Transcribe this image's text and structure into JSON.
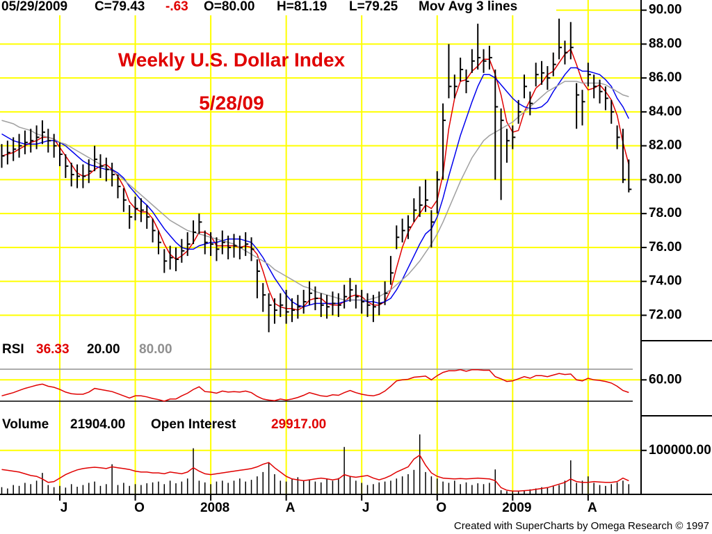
{
  "chart_data": [
    {
      "type": "ohlc",
      "header": {
        "date": "05/29/2009",
        "close": "C=79.43",
        "change": "-.63",
        "open": "O=80.00",
        "high": "H=81.19",
        "low": "L=79.25",
        "note": "Mov Avg 3 lines"
      },
      "title": "Weekly U.S. Dollar Index",
      "subtitle": "5/28/09",
      "categories": [
        null,
        null,
        null,
        null,
        null,
        null,
        null,
        null,
        null,
        null,
        "J",
        null,
        null,
        null,
        null,
        null,
        null,
        null,
        null,
        null,
        null,
        null,
        null,
        "O",
        null,
        null,
        null,
        null,
        null,
        null,
        null,
        null,
        null,
        null,
        null,
        null,
        "2008",
        null,
        null,
        null,
        null,
        null,
        null,
        null,
        null,
        null,
        null,
        null,
        null,
        "A",
        null,
        null,
        null,
        null,
        null,
        null,
        null,
        null,
        null,
        null,
        null,
        null,
        "J",
        null,
        null,
        null,
        null,
        null,
        null,
        null,
        null,
        null,
        null,
        null,
        null,
        "O",
        null,
        null,
        null,
        null,
        null,
        null,
        null,
        null,
        null,
        null,
        null,
        null,
        "2009",
        null,
        null,
        null,
        null,
        null,
        null,
        null,
        null,
        null,
        null,
        null,
        null,
        "A",
        null,
        null,
        null,
        null,
        null,
        null,
        null
      ],
      "high": [
        82.1,
        82.3,
        82.5,
        82.7,
        82.9,
        83.0,
        83.2,
        83.5,
        83.0,
        82.7,
        82.2,
        81.5,
        81.0,
        80.9,
        80.9,
        81.2,
        82.0,
        81.5,
        81.3,
        81.0,
        80.3,
        79.5,
        78.5,
        79.0,
        78.9,
        78.5,
        77.7,
        77.0,
        75.9,
        76.1,
        76.0,
        76.5,
        76.9,
        77.6,
        78.0,
        77.0,
        76.9,
        76.6,
        77.0,
        76.7,
        76.8,
        76.7,
        76.9,
        76.6,
        75.3,
        73.9,
        73.3,
        73.0,
        73.3,
        73.5,
        73.0,
        73.2,
        73.5,
        74.0,
        73.7,
        73.3,
        73.2,
        73.4,
        73.3,
        73.8,
        74.2,
        73.8,
        73.5,
        73.3,
        73.2,
        73.4,
        74.0,
        75.5,
        77.3,
        77.7,
        77.9,
        78.9,
        79.6,
        80.0,
        78.2,
        80.5,
        84.5,
        88.0,
        86.2,
        87.2,
        86.5,
        87.7,
        89.2,
        87.7,
        87.9,
        86.5,
        84.2,
        83.0,
        83.2,
        84.7,
        86.2,
        85.2,
        86.9,
        87.0,
        86.7,
        87.5,
        89.5,
        88.2,
        89.3,
        85.7,
        85.3,
        86.9,
        86.2,
        85.9,
        85.5,
        84.7,
        83.2,
        83.0,
        81.19
      ],
      "low": [
        80.7,
        80.9,
        81.1,
        81.3,
        81.5,
        81.6,
        81.8,
        82.1,
        81.6,
        81.3,
        80.8,
        80.1,
        79.6,
        79.5,
        79.5,
        79.8,
        80.5,
        80.1,
        79.9,
        79.6,
        78.9,
        78.1,
        77.1,
        77.6,
        77.5,
        77.1,
        76.3,
        75.6,
        74.5,
        74.7,
        74.6,
        75.1,
        75.5,
        76.2,
        76.8,
        75.6,
        75.5,
        75.2,
        75.6,
        75.3,
        75.4,
        75.3,
        75.5,
        75.2,
        73.0,
        72.2,
        71.0,
        71.5,
        71.9,
        71.5,
        71.6,
        71.8,
        72.1,
        72.6,
        72.3,
        71.9,
        71.8,
        72.0,
        71.9,
        72.4,
        72.8,
        72.4,
        72.1,
        71.9,
        71.6,
        72.0,
        72.6,
        73.8,
        75.9,
        76.3,
        76.5,
        77.5,
        77.8,
        78.1,
        76.0,
        78.0,
        80.0,
        84.8,
        84.8,
        85.8,
        85.1,
        86.3,
        86.5,
        86.3,
        86.5,
        80.0,
        78.8,
        81.0,
        81.8,
        83.3,
        84.8,
        83.8,
        85.5,
        85.6,
        85.3,
        86.1,
        87.1,
        86.8,
        87.1,
        83.0,
        83.2,
        85.5,
        84.8,
        84.5,
        84.1,
        83.3,
        81.8,
        79.8,
        79.25
      ],
      "close": [
        81.4,
        81.6,
        81.8,
        82.0,
        82.2,
        82.3,
        82.5,
        82.8,
        82.3,
        82.0,
        81.5,
        80.8,
        80.3,
        80.2,
        80.2,
        80.5,
        81.2,
        80.8,
        80.6,
        80.3,
        79.6,
        78.8,
        77.8,
        78.3,
        78.2,
        77.8,
        77.0,
        76.3,
        75.2,
        75.4,
        75.3,
        75.8,
        76.2,
        76.9,
        77.5,
        76.3,
        76.2,
        75.9,
        76.3,
        76.0,
        76.1,
        76.0,
        76.2,
        75.9,
        74.6,
        73.2,
        72.6,
        72.3,
        72.6,
        72.2,
        72.3,
        72.5,
        72.8,
        73.3,
        73.0,
        72.6,
        72.5,
        72.7,
        72.6,
        73.1,
        73.5,
        73.1,
        72.8,
        72.6,
        72.5,
        72.7,
        73.3,
        74.5,
        76.6,
        77.0,
        77.2,
        78.2,
        78.5,
        78.8,
        77.5,
        80.0,
        83.5,
        85.5,
        85.5,
        86.5,
        85.8,
        87.0,
        87.2,
        87.0,
        87.2,
        84.3,
        83.5,
        82.3,
        82.5,
        84.0,
        85.5,
        84.5,
        86.2,
        86.3,
        86.0,
        86.8,
        87.8,
        87.5,
        87.8,
        85.0,
        84.6,
        86.2,
        85.5,
        85.2,
        84.8,
        84.0,
        82.5,
        80.0,
        79.43
      ],
      "bar_color": "#000000",
      "moving_averages": [
        {
          "color": "#e00000",
          "values": [
            81.4,
            81.5,
            81.6,
            81.8,
            82.0,
            82.2,
            82.3,
            82.5,
            82.5,
            82.4,
            81.9,
            81.4,
            80.9,
            80.4,
            80.2,
            80.3,
            80.6,
            80.8,
            80.9,
            80.6,
            80.2,
            79.6,
            78.7,
            78.3,
            78.1,
            78.1,
            77.7,
            77.0,
            76.2,
            75.6,
            75.3,
            75.5,
            75.8,
            76.3,
            76.9,
            76.9,
            76.7,
            76.1,
            76.1,
            76.1,
            76.1,
            76.0,
            76.1,
            76.0,
            75.6,
            74.6,
            73.5,
            72.7,
            72.5,
            72.4,
            72.4,
            72.3,
            72.5,
            72.9,
            73.0,
            73.0,
            72.7,
            72.6,
            72.6,
            72.8,
            73.1,
            73.2,
            73.1,
            72.8,
            72.6,
            72.6,
            72.8,
            73.5,
            74.8,
            76.0,
            76.9,
            77.5,
            78.0,
            78.5,
            78.3,
            78.8,
            80.3,
            83.0,
            84.8,
            85.8,
            85.9,
            86.4,
            86.7,
            87.1,
            87.1,
            86.2,
            85.0,
            83.4,
            82.8,
            82.9,
            84.0,
            84.7,
            85.4,
            85.7,
            86.2,
            86.4,
            86.9,
            87.4,
            87.7,
            86.8,
            85.8,
            85.3,
            85.4,
            85.6,
            85.2,
            84.7,
            83.8,
            82.2,
            80.9
          ]
        },
        {
          "color": "#0000ee",
          "values": [
            82.7,
            82.5,
            82.3,
            82.2,
            82.1,
            82.1,
            82.1,
            82.2,
            82.3,
            82.3,
            82.2,
            82.0,
            81.7,
            81.4,
            81.1,
            80.9,
            80.8,
            80.7,
            80.6,
            80.6,
            80.4,
            80.1,
            79.6,
            79.2,
            78.8,
            78.5,
            78.1,
            77.6,
            77.1,
            76.7,
            76.3,
            76.0,
            75.9,
            75.9,
            76.1,
            76.2,
            76.3,
            76.3,
            76.4,
            76.5,
            76.5,
            76.5,
            76.4,
            76.3,
            75.9,
            75.4,
            74.8,
            74.2,
            73.7,
            73.2,
            72.8,
            72.6,
            72.5,
            72.6,
            72.7,
            72.7,
            72.7,
            72.7,
            72.7,
            72.8,
            72.9,
            72.9,
            72.9,
            72.8,
            72.8,
            72.7,
            72.8,
            73.0,
            73.5,
            74.1,
            74.8,
            75.5,
            76.2,
            76.8,
            77.1,
            77.8,
            78.9,
            80.2,
            81.4,
            82.6,
            83.6,
            84.6,
            85.5,
            86.2,
            86.2,
            86.0,
            85.6,
            85.2,
            84.8,
            84.5,
            84.3,
            84.2,
            84.2,
            84.3,
            84.6,
            85.2,
            85.7,
            86.2,
            86.6,
            86.6,
            86.4,
            86.4,
            86.3,
            86.2,
            85.9,
            85.5,
            84.8,
            84.3,
            83.6
          ]
        },
        {
          "color": "#a0a0a0",
          "values": [
            83.5,
            83.4,
            83.3,
            83.1,
            83.0,
            82.9,
            82.7,
            82.6,
            82.5,
            82.4,
            82.2,
            82.1,
            81.9,
            81.7,
            81.5,
            81.3,
            81.1,
            80.9,
            80.7,
            80.5,
            80.3,
            80.0,
            79.7,
            79.4,
            79.1,
            78.8,
            78.5,
            78.2,
            77.9,
            77.6,
            77.4,
            77.2,
            77.0,
            76.9,
            76.8,
            76.7,
            76.6,
            76.5,
            76.4,
            76.3,
            76.2,
            76.0,
            75.8,
            75.6,
            75.4,
            75.2,
            75.0,
            74.7,
            74.5,
            74.3,
            74.1,
            73.9,
            73.7,
            73.6,
            73.4,
            73.3,
            73.2,
            73.1,
            73.0,
            72.9,
            72.9,
            72.9,
            72.9,
            72.9,
            73.0,
            73.1,
            73.3,
            73.5,
            73.8,
            74.1,
            74.4,
            74.8,
            75.2,
            75.7,
            76.2,
            76.8,
            77.5,
            78.3,
            79.1,
            79.9,
            80.6,
            81.3,
            81.8,
            82.3,
            82.6,
            82.8,
            83.0,
            83.2,
            83.4,
            83.7,
            84.0,
            84.3,
            84.6,
            84.9,
            85.2,
            85.4,
            85.6,
            85.8,
            85.8,
            85.8,
            85.7,
            85.7,
            85.7,
            85.7,
            85.6,
            85.4,
            85.2,
            85.0,
            84.9
          ]
        }
      ],
      "ylim": [
        70.5,
        90.6
      ],
      "yticks": [
        {
          "value": 72,
          "label": "72.00"
        },
        {
          "value": 74,
          "label": "74.00"
        },
        {
          "value": 76,
          "label": "76.00"
        },
        {
          "value": 78,
          "label": "78.00"
        },
        {
          "value": 80,
          "label": "80.00"
        },
        {
          "value": 82,
          "label": "82.00"
        },
        {
          "value": 84,
          "label": "84.00"
        },
        {
          "value": 86,
          "label": "86.00"
        },
        {
          "value": 88,
          "label": "88.00"
        },
        {
          "value": 90,
          "label": "90.00"
        }
      ],
      "grid": true,
      "grid_color": "#ffff00"
    },
    {
      "type": "line",
      "label": "RSI",
      "value_label": "36.33",
      "color": "#e00000",
      "values": [
        30,
        33,
        36,
        40,
        44,
        47,
        50,
        52,
        48,
        46,
        42,
        37,
        34,
        33,
        33,
        37,
        44,
        42,
        40,
        38,
        34,
        30,
        26,
        30,
        30,
        28,
        25,
        23,
        20,
        24,
        24,
        30,
        35,
        42,
        47,
        38,
        37,
        35,
        39,
        37,
        38,
        37,
        39,
        36,
        29,
        24,
        22,
        21,
        24,
        22,
        24,
        27,
        31,
        36,
        33,
        30,
        29,
        32,
        31,
        36,
        40,
        36,
        33,
        31,
        30,
        33,
        39,
        48,
        58,
        60,
        61,
        65,
        66,
        67,
        60,
        68,
        74,
        77,
        77,
        79,
        76,
        79,
        79,
        78,
        78,
        66,
        62,
        57,
        58,
        62,
        66,
        63,
        68,
        68,
        66,
        69,
        72,
        70,
        71,
        60,
        58,
        63,
        60,
        59,
        57,
        54,
        48,
        40,
        36.33
      ],
      "levels": [
        {
          "value": 20,
          "label": "20.00",
          "color": "#000000"
        },
        {
          "value": 80,
          "label": "80.00",
          "color": "#909090"
        }
      ],
      "ylim": [
        -7.4,
        133.4
      ],
      "yticks": [
        {
          "value": 60,
          "label": "60.00"
        }
      ],
      "grid": true
    },
    {
      "type": "volume",
      "volume": {
        "label": "Volume",
        "value_label": "21904.00",
        "color": "#000000",
        "values": [
          15000,
          12000,
          20000,
          18000,
          25000,
          22000,
          30000,
          48000,
          20000,
          15000,
          18000,
          14000,
          22000,
          16000,
          20000,
          25000,
          28000,
          18000,
          22000,
          68000,
          20000,
          25000,
          18000,
          22000,
          20000,
          24000,
          26000,
          28000,
          22000,
          30000,
          24000,
          28000,
          35000,
          105000,
          30000,
          26000,
          22000,
          28000,
          30000,
          25000,
          30000,
          35000,
          28000,
          32000,
          40000,
          50000,
          72000,
          45000,
          30000,
          28000,
          35000,
          38000,
          30000,
          32000,
          28000,
          26000,
          34000,
          30000,
          36000,
          108000,
          40000,
          30000,
          25000,
          20000,
          22000,
          26000,
          28000,
          30000,
          35000,
          40000,
          45000,
          55000,
          137000,
          50000,
          40000,
          35000,
          28000,
          25000,
          30000,
          22000,
          26000,
          20000,
          24000,
          22000,
          25000,
          56000,
          8000,
          6000,
          5000,
          7000,
          8000,
          10000,
          12000,
          15000,
          14000,
          18000,
          20000,
          30000,
          77000,
          25000,
          30000,
          40000,
          25000,
          20000,
          18000,
          22000,
          26000,
          30000,
          21904
        ]
      },
      "open_interest": {
        "label": "Open Interest",
        "value_label": "29917.00",
        "color": "#e00000",
        "values": [
          56000,
          54000,
          52000,
          50000,
          46000,
          42000,
          40000,
          34000,
          26000,
          28000,
          36000,
          44000,
          50000,
          55000,
          58000,
          60000,
          61000,
          60000,
          58000,
          62000,
          60000,
          58000,
          56000,
          52000,
          50000,
          50000,
          48000,
          48000,
          46000,
          50000,
          48000,
          46000,
          50000,
          60000,
          52000,
          46000,
          44000,
          46000,
          48000,
          50000,
          52000,
          54000,
          56000,
          58000,
          62000,
          68000,
          72000,
          60000,
          50000,
          40000,
          34000,
          32000,
          30000,
          32000,
          34000,
          36000,
          34000,
          32000,
          34000,
          44000,
          40000,
          38000,
          40000,
          42000,
          36000,
          32000,
          36000,
          42000,
          50000,
          56000,
          62000,
          80000,
          89000,
          66000,
          48000,
          40000,
          36000,
          35000,
          34000,
          35000,
          34000,
          35000,
          36000,
          35000,
          34000,
          30000,
          14000,
          8000,
          6000,
          6000,
          7000,
          8000,
          10000,
          12000,
          14000,
          18000,
          22000,
          26000,
          34000,
          28000,
          26000,
          26000,
          28000,
          27000,
          26000,
          26000,
          28000,
          36000,
          29917
        ]
      },
      "ylim": [
        0,
        180000
      ],
      "yticks": [
        {
          "value": 100000,
          "label": "100000.00"
        }
      ],
      "grid": true
    }
  ],
  "footer": "Created with SuperCharts by Omega Research © 1997"
}
